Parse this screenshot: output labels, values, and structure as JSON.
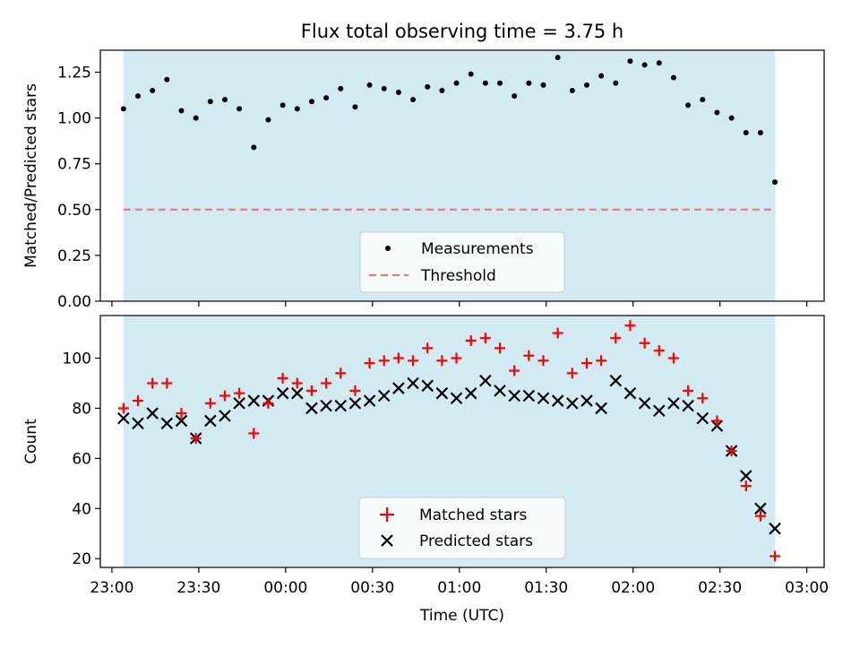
{
  "chart_data": {
    "title": "Flux total observing time = 3.75 h",
    "xlabel": "Time (UTC)",
    "x_tick_labels": [
      "23:00",
      "23:30",
      "00:00",
      "00:30",
      "01:00",
      "01:30",
      "02:00",
      "02:30",
      "03:00"
    ],
    "x_tick_minutes": [
      0,
      30,
      60,
      90,
      120,
      150,
      180,
      210,
      240
    ],
    "x_range_minutes": [
      -4,
      246
    ],
    "observing_window_minutes": [
      4,
      229
    ],
    "shade_color": "#add8e6",
    "times_minutes": [
      4,
      9,
      14,
      19,
      24,
      29,
      34,
      39,
      44,
      49,
      54,
      59,
      64,
      69,
      74,
      79,
      84,
      89,
      94,
      99,
      104,
      109,
      114,
      119,
      124,
      129,
      134,
      139,
      144,
      149,
      154,
      159,
      164,
      169,
      174,
      179,
      184,
      189,
      194,
      199,
      204,
      209,
      214,
      219,
      224,
      229
    ],
    "panels": [
      {
        "type": "scatter",
        "ylabel": "Matched/Predicted stars",
        "ylim": [
          0,
          1.37
        ],
        "y_ticks": [
          0,
          0.25,
          0.5,
          0.75,
          1.0,
          1.25
        ],
        "y_tick_labels": [
          "0.00",
          "0.25",
          "0.50",
          "0.75",
          "1.00",
          "1.25"
        ],
        "legend": {
          "location": "lower center",
          "entries": [
            "Measurements",
            "Threshold"
          ]
        },
        "series": [
          {
            "name": "Measurements",
            "marker": "dot",
            "color": "#000000",
            "values": [
              1.05,
              1.12,
              1.15,
              1.21,
              1.04,
              1.0,
              1.09,
              1.1,
              1.05,
              0.84,
              0.99,
              1.07,
              1.05,
              1.09,
              1.11,
              1.16,
              1.06,
              1.18,
              1.16,
              1.14,
              1.1,
              1.17,
              1.15,
              1.19,
              1.24,
              1.19,
              1.19,
              1.12,
              1.19,
              1.18,
              1.33,
              1.15,
              1.18,
              1.23,
              1.19,
              1.31,
              1.29,
              1.3,
              1.22,
              1.07,
              1.1,
              1.03,
              1.0,
              0.92,
              0.92,
              0.65
            ]
          },
          {
            "name": "Threshold",
            "marker": "dashed-line",
            "color": "#ff6b6b",
            "constant": 0.5
          }
        ]
      },
      {
        "type": "scatter",
        "ylabel": "Count",
        "ylim": [
          16.5,
          117
        ],
        "y_ticks": [
          20,
          40,
          60,
          80,
          100
        ],
        "y_tick_labels": [
          "20",
          "40",
          "60",
          "80",
          "100"
        ],
        "legend": {
          "location": "lower center",
          "entries": [
            "Matched stars",
            "Predicted stars"
          ]
        },
        "series": [
          {
            "name": "Matched stars",
            "marker": "plus",
            "color": "#ff0000",
            "values": [
              80,
              83,
              90,
              90,
              78,
              68,
              82,
              85,
              86,
              70,
              82,
              92,
              90,
              87,
              90,
              94,
              87,
              98,
              99,
              100,
              99,
              104,
              99,
              100,
              107,
              108,
              104,
              95,
              101,
              99,
              110,
              94,
              98,
              99,
              108,
              113,
              106,
              103,
              100,
              87,
              84,
              75,
              63,
              49,
              37,
              21
            ]
          },
          {
            "name": "Predicted stars",
            "marker": "x",
            "color": "#000000",
            "values": [
              76,
              74,
              78,
              74,
              75,
              68,
              75,
              77,
              82,
              83,
              83,
              86,
              86,
              80,
              81,
              81,
              82,
              83,
              85,
              88,
              90,
              89,
              86,
              84,
              86,
              91,
              87,
              85,
              85,
              84,
              83,
              82,
              83,
              80,
              91,
              86,
              82,
              79,
              82,
              81,
              76,
              73,
              63,
              53,
              40,
              32
            ]
          }
        ]
      }
    ]
  }
}
